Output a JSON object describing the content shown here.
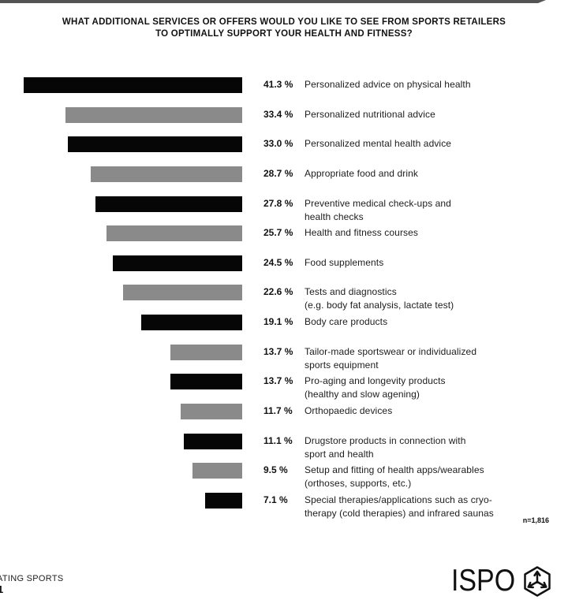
{
  "page": {
    "footer_left_line1": "ATING SPORTS",
    "footer_left_partial_glyph": "1",
    "brand_name": "ISPO",
    "brand_icon": "ispo-hexagon-arrows-icon",
    "top_strip_color": "#545454"
  },
  "colors": {
    "bar_black": "#060606",
    "bar_gray": "#8a8a8a",
    "text": "#1a1a1a"
  },
  "chart_data": {
    "type": "bar",
    "orientation": "horizontal",
    "title": "WHAT ADDITIONAL SERVICES OR OFFERS WOULD YOU LIKE TO SEE FROM SPORTS RETAILERS TO OPTIMALLY SUPPORT YOUR HEALTH AND FITNESS?",
    "title_lines": [
      "WHAT ADDITIONAL SERVICES OR OFFERS WOULD YOU LIKE TO SEE FROM SPORTS RETAILERS",
      "TO OPTIMALLY SUPPORT YOUR HEALTH AND FITNESS?"
    ],
    "unit": "%",
    "value_axis_range": [
      0,
      41.3
    ],
    "grid": false,
    "legend": false,
    "bars_right_aligned": true,
    "bar_color_pattern": [
      "black",
      "gray"
    ],
    "sample_size_label": "n=1,816",
    "categories": [
      "Personalized advice on physical health",
      "Personalized nutritional advice",
      "Personalized mental health advice",
      "Appropriate food and drink",
      "Preventive medical check-ups and health checks",
      "Health and fitness courses",
      "Food supplements",
      "Tests and diagnostics (e.g. body fat analysis, lactate test)",
      "Body care products",
      "Tailor-made sportswear or individualized sports equipment",
      "Pro-aging and longevity products (healthy and slow agening)",
      "Orthopaedic devices",
      "Drugstore products in connection with sport and health",
      "Setup and fitting of health apps/wearables (orthoses, supports, etc.)",
      "Special therapies/applications such as cryo-therapy (cold therapies) and infrared saunas"
    ],
    "values": [
      41.3,
      33.4,
      33.0,
      28.7,
      27.8,
      25.7,
      24.5,
      22.6,
      19.1,
      13.7,
      13.7,
      11.7,
      11.1,
      9.5,
      7.1
    ],
    "items": [
      {
        "value": 41.3,
        "pct_label": "41.3 %",
        "color": "black",
        "lines": [
          "Personalized advice on physical health"
        ]
      },
      {
        "value": 33.4,
        "pct_label": "33.4 %",
        "color": "gray",
        "lines": [
          "Personalized nutritional advice"
        ]
      },
      {
        "value": 33.0,
        "pct_label": "33.0 %",
        "color": "black",
        "lines": [
          "Personalized mental health advice"
        ]
      },
      {
        "value": 28.7,
        "pct_label": "28.7 %",
        "color": "gray",
        "lines": [
          "Appropriate food and drink"
        ]
      },
      {
        "value": 27.8,
        "pct_label": "27.8 %",
        "color": "black",
        "lines": [
          "Preventive medical check-ups and",
          "health checks"
        ]
      },
      {
        "value": 25.7,
        "pct_label": "25.7 %",
        "color": "gray",
        "lines": [
          "Health and fitness courses"
        ]
      },
      {
        "value": 24.5,
        "pct_label": "24.5 %",
        "color": "black",
        "lines": [
          "Food supplements"
        ]
      },
      {
        "value": 22.6,
        "pct_label": "22.6 %",
        "color": "gray",
        "lines": [
          "Tests and diagnostics",
          "(e.g. body fat analysis, lactate test)"
        ]
      },
      {
        "value": 19.1,
        "pct_label": "19.1 %",
        "color": "black",
        "lines": [
          "Body care products"
        ]
      },
      {
        "value": 13.7,
        "pct_label": "13.7 %",
        "color": "gray",
        "lines": [
          "Tailor-made sportswear or individualized",
          "sports equipment"
        ]
      },
      {
        "value": 13.7,
        "pct_label": "13.7 %",
        "color": "black",
        "lines": [
          "Pro-aging and longevity products",
          "(healthy and slow agening)"
        ]
      },
      {
        "value": 11.7,
        "pct_label": "11.7 %",
        "color": "gray",
        "lines": [
          "Orthopaedic devices"
        ]
      },
      {
        "value": 11.1,
        "pct_label": "11.1 %",
        "color": "black",
        "lines": [
          "Drugstore products in connection with",
          "sport and health"
        ]
      },
      {
        "value": 9.5,
        "pct_label": "9.5 %",
        "color": "gray",
        "lines": [
          "Setup and fitting of health apps/wearables",
          "(orthoses, supports, etc.)"
        ]
      },
      {
        "value": 7.1,
        "pct_label": "7.1 %",
        "color": "black",
        "lines": [
          "Special therapies/applications such as cryo-",
          "therapy (cold therapies) and infrared saunas"
        ]
      }
    ]
  }
}
